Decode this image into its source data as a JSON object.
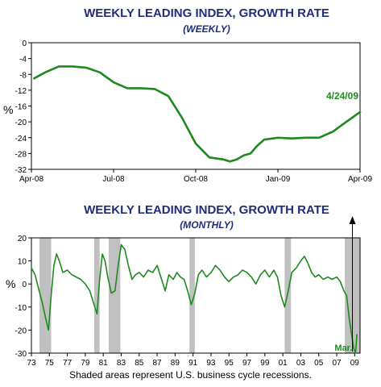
{
  "chart_data": [
    {
      "type": "line",
      "title": "WEEKLY LEADING INDEX, GROWTH RATE",
      "subtitle": "(WEEKLY)",
      "ylabel": "%",
      "xlabel": "",
      "ylim": [
        -32,
        0
      ],
      "yticks": [
        "0",
        "-4",
        "-8",
        "-12",
        "-16",
        "-20",
        "-24",
        "-28",
        "-32"
      ],
      "ytick_values": [
        0,
        -4,
        -8,
        -12,
        -16,
        -20,
        -24,
        -28,
        -32
      ],
      "xlim": [
        0,
        12
      ],
      "xticks": [
        "Apr-08",
        "Jul-08",
        "Oct-08",
        "Jan-09",
        "Apr-09"
      ],
      "xtick_values": [
        0,
        3,
        6,
        9,
        12
      ],
      "grid": false,
      "line_color": "#1e8a1e",
      "annotation": "4/24/09",
      "series": [
        {
          "x": [
            0.1,
            0.5,
            1.0,
            1.5,
            2.0,
            2.5,
            3.0,
            3.5,
            4.0,
            4.5,
            5.0,
            5.5,
            6.0,
            6.5,
            7.0,
            7.25,
            7.5,
            7.75,
            8.0,
            8.25,
            8.5,
            9.0,
            9.5,
            10.0,
            10.5,
            11.0,
            11.5,
            12.0
          ],
          "values": [
            -9,
            -7.5,
            -6,
            -6,
            -6.3,
            -7.5,
            -10,
            -11.5,
            -11.5,
            -11.7,
            -13.5,
            -19,
            -25.5,
            -29,
            -29.5,
            -30,
            -29.5,
            -28.5,
            -28,
            -26,
            -24.5,
            -24,
            -24.2,
            -24,
            -24,
            -22.5,
            -20,
            -17.5
          ]
        }
      ]
    },
    {
      "type": "line",
      "title": "WEEKLY LEADING INDEX, GROWTH RATE",
      "subtitle": "(MONTHLY)",
      "ylabel": "%",
      "xlabel": "",
      "ylim": [
        -30,
        20
      ],
      "yticks": [
        "20",
        "10",
        "0",
        "-10",
        "-20",
        "-30"
      ],
      "ytick_values": [
        20,
        10,
        0,
        -10,
        -20,
        -30
      ],
      "xlim": [
        1973,
        2009.6
      ],
      "xticks": [
        "73",
        "75",
        "77",
        "79",
        "81",
        "83",
        "85",
        "87",
        "89",
        "91",
        "93",
        "95",
        "97",
        "99",
        "01",
        "03",
        "05",
        "07",
        "09"
      ],
      "xtick_values": [
        1973,
        1975,
        1977,
        1979,
        1981,
        1983,
        1985,
        1987,
        1989,
        1991,
        1993,
        1995,
        1997,
        1999,
        2001,
        2003,
        2005,
        2007,
        2009
      ],
      "grid": false,
      "line_color": "#1e8a1e",
      "recession_color": "#c0c0c0",
      "recessions": [
        [
          1973.9,
          1975.2
        ],
        [
          1980.0,
          1980.6
        ],
        [
          1981.6,
          1982.9
        ],
        [
          1990.6,
          1991.2
        ],
        [
          2001.2,
          2001.9
        ],
        [
          2007.9,
          2009.6
        ]
      ],
      "annotation": "Mar.",
      "note": "Shaded areas represent U.S. business cycle recessions.",
      "series": [
        {
          "x": [
            1973.0,
            1973.4,
            1973.8,
            1974.2,
            1974.6,
            1974.9,
            1975.2,
            1975.5,
            1975.8,
            1976.1,
            1976.5,
            1977.0,
            1977.5,
            1978.0,
            1978.5,
            1979.0,
            1979.5,
            1979.9,
            1980.3,
            1980.6,
            1980.9,
            1981.2,
            1981.5,
            1981.9,
            1982.3,
            1982.7,
            1983.0,
            1983.4,
            1983.8,
            1984.2,
            1984.6,
            1985.0,
            1985.5,
            1986.0,
            1986.5,
            1987.0,
            1987.5,
            1987.9,
            1988.3,
            1988.8,
            1989.2,
            1989.6,
            1990.0,
            1990.4,
            1990.8,
            1991.2,
            1991.6,
            1992.0,
            1992.5,
            1993.0,
            1993.5,
            1994.0,
            1994.5,
            1995.0,
            1995.5,
            1996.0,
            1996.5,
            1997.0,
            1997.5,
            1998.0,
            1998.5,
            1999.0,
            1999.5,
            2000.0,
            2000.4,
            2000.8,
            2001.2,
            2001.6,
            2002.0,
            2002.5,
            2003.0,
            2003.4,
            2003.8,
            2004.2,
            2004.6,
            2005.0,
            2005.5,
            2006.0,
            2006.5,
            2007.0,
            2007.4,
            2007.8,
            2008.1,
            2008.4,
            2008.7,
            2008.9,
            2009.1,
            2009.25
          ],
          "values": [
            7,
            4,
            -2,
            -8,
            -15,
            -20,
            -5,
            8,
            13,
            10,
            5,
            6,
            4,
            3,
            2,
            0,
            -3,
            -8,
            -13,
            2,
            13,
            10,
            3,
            -4,
            -3,
            9,
            17,
            15,
            8,
            2,
            4,
            5,
            3,
            6,
            5,
            8,
            2,
            -3,
            4,
            2,
            5,
            3,
            2,
            -3,
            -9,
            -4,
            4,
            6,
            3,
            5,
            8,
            6,
            3,
            1,
            3,
            4,
            6,
            5,
            3,
            0,
            4,
            6,
            3,
            6,
            3,
            -5,
            -10,
            -3,
            5,
            7,
            10,
            12,
            9,
            5,
            3,
            4,
            2,
            3,
            2,
            3,
            1,
            -3,
            -5,
            -15,
            -23,
            -28,
            -30,
            -22
          ]
        }
      ]
    }
  ]
}
